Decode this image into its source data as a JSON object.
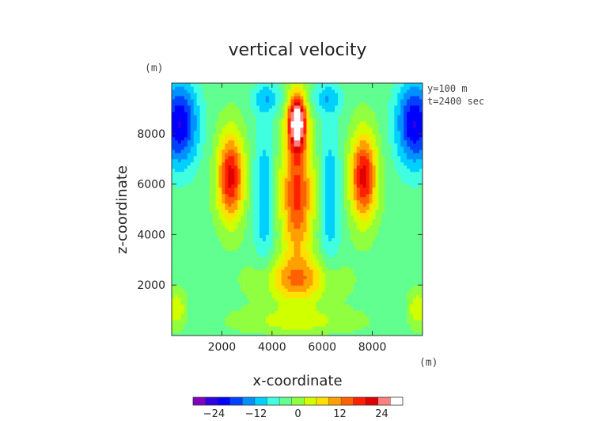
{
  "chart_data": {
    "type": "heatmap",
    "title": "vertical velocity",
    "xlabel": "x-coordinate",
    "ylabel": "z-coordinate",
    "x_unit": "(m)",
    "y_unit": "(m)",
    "annotations": [
      "y=100 m",
      "t=2400 sec"
    ],
    "xlim": [
      0,
      10000
    ],
    "ylim": [
      0,
      10000
    ],
    "xticks": [
      2000,
      4000,
      6000,
      8000
    ],
    "xtick_labels": [
      "2000",
      "4000",
      "6000",
      "8000"
    ],
    "yticks": [
      2000,
      4000,
      6000,
      8000
    ],
    "ytick_labels": [
      "2000",
      "4000",
      "6000",
      "8000"
    ],
    "colorbar": {
      "range": [
        -30,
        30
      ],
      "ticks": [
        -24,
        -12,
        0,
        12,
        24
      ],
      "tick_labels": [
        "−24",
        "−12",
        "0",
        "12",
        "24"
      ],
      "colors": [
        "#8000c0",
        "#3000e0",
        "#0000ff",
        "#0040ff",
        "#0090ff",
        "#00d0ff",
        "#40ffe0",
        "#60ff90",
        "#90ff40",
        "#d0ff00",
        "#ffe000",
        "#ffa000",
        "#ff6000",
        "#ff2000",
        "#e00000",
        "#ff8080",
        "#ffffff"
      ]
    },
    "field_features": [
      {
        "kind": "updraft_core",
        "x": 5000,
        "z": 8300,
        "value": 32
      },
      {
        "kind": "updraft_plume",
        "x": 5000,
        "z": 5500,
        "value": 20
      },
      {
        "kind": "updraft_lobe",
        "x": 2300,
        "z": 6200,
        "value": 22
      },
      {
        "kind": "updraft_lobe",
        "x": 7700,
        "z": 6200,
        "value": 22
      },
      {
        "kind": "downdraft_band",
        "x": 3700,
        "z": 5500,
        "value": -8
      },
      {
        "kind": "downdraft_band",
        "x": 6300,
        "z": 5500,
        "value": -8
      },
      {
        "kind": "downdraft_edge",
        "x": 200,
        "z": 8200,
        "value": -22
      },
      {
        "kind": "downdraft_edge",
        "x": 9800,
        "z": 8200,
        "value": -22
      },
      {
        "kind": "low_level_inflow",
        "x": 5000,
        "z": 1200,
        "value": 8
      }
    ]
  }
}
